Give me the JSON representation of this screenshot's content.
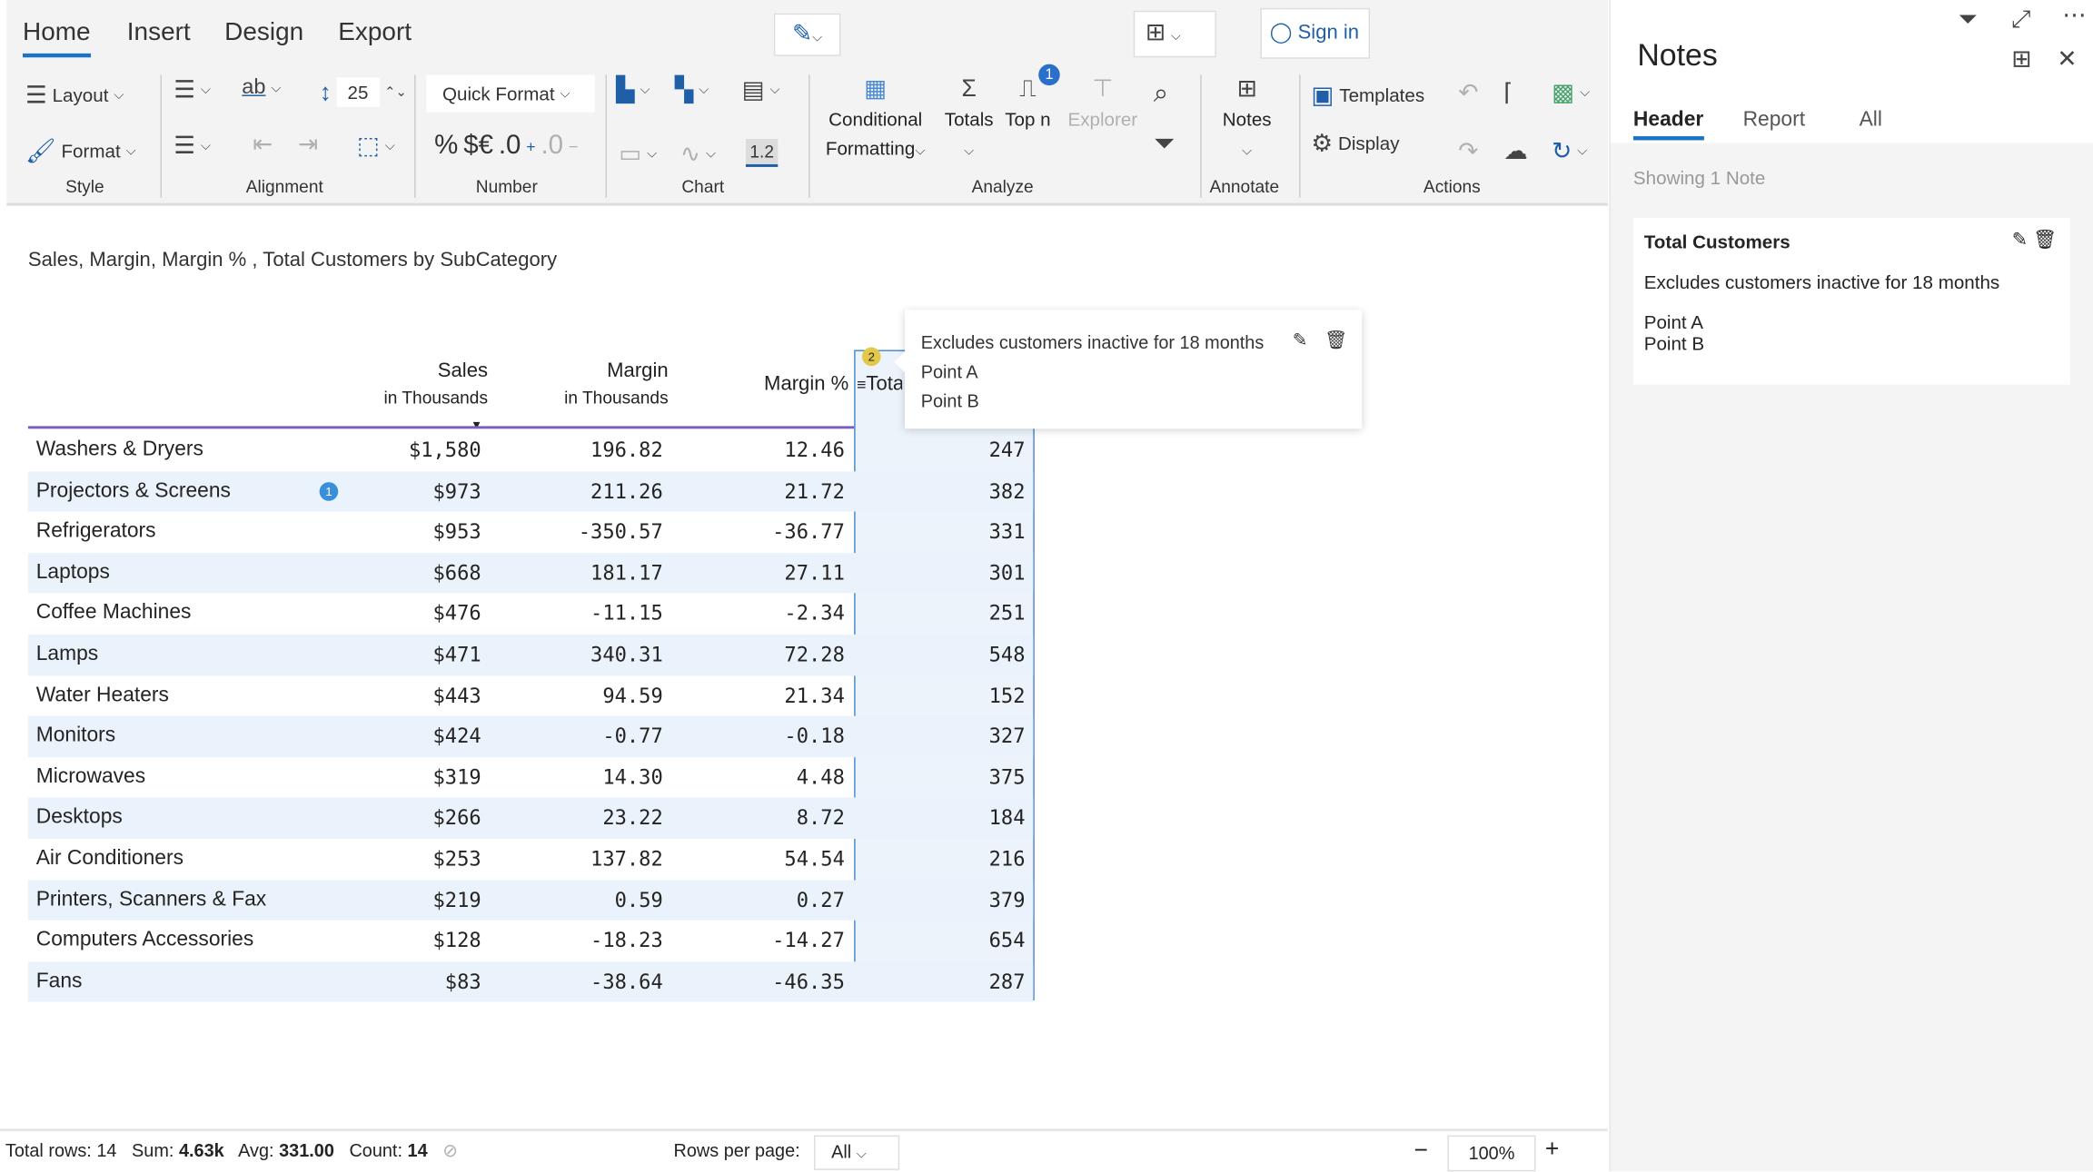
{
  "ribbon": {
    "tabs": [
      "Home",
      "Insert",
      "Design",
      "Export"
    ],
    "active_tab": "Home",
    "sign_in": "Sign in",
    "layout": "Layout",
    "format": "Format",
    "row_height": "25",
    "quick_format": "Quick Format",
    "number_symbols": {
      "percent": "%",
      "currency": "$€",
      "inc_decimal": ".0",
      "dec_decimal": ".0"
    },
    "chart_value": "1.2",
    "conditional": "Conditional",
    "formatting": "Formatting",
    "totals": "Totals",
    "topn": "Top n",
    "topn_badge": "1",
    "explorer": "Explorer",
    "notes": "Notes",
    "templates": "Templates",
    "display": "Display",
    "groups": [
      "Style",
      "Alignment",
      "Number",
      "Chart",
      "Analyze",
      "Annotate",
      "Actions"
    ]
  },
  "report": {
    "title": "Sales, Margin, Margin % , Total Customers by SubCategory",
    "columns": [
      {
        "label": "Sales",
        "sub": "in Thousands",
        "sorted": "desc"
      },
      {
        "label": "Margin",
        "sub": "in Thousands"
      },
      {
        "label": "Margin %",
        "sub": ""
      },
      {
        "label": "Total Customers",
        "sub": "",
        "note_badge": "2",
        "visible_label": "Tota"
      }
    ],
    "rows": [
      {
        "name": "Washers & Dryers",
        "sales": "$1,580",
        "margin": "196.82",
        "pct": "12.46",
        "cust": "247"
      },
      {
        "name": "Projectors & Screens",
        "sales": "$973",
        "margin": "211.26",
        "pct": "21.72",
        "cust": "382",
        "badge": "1"
      },
      {
        "name": "Refrigerators",
        "sales": "$953",
        "margin": "-350.57",
        "pct": "-36.77",
        "cust": "331"
      },
      {
        "name": "Laptops",
        "sales": "$668",
        "margin": "181.17",
        "pct": "27.11",
        "cust": "301"
      },
      {
        "name": "Coffee Machines",
        "sales": "$476",
        "margin": "-11.15",
        "pct": "-2.34",
        "cust": "251"
      },
      {
        "name": "Lamps",
        "sales": "$471",
        "margin": "340.31",
        "pct": "72.28",
        "cust": "548"
      },
      {
        "name": "Water Heaters",
        "sales": "$443",
        "margin": "94.59",
        "pct": "21.34",
        "cust": "152"
      },
      {
        "name": "Monitors",
        "sales": "$424",
        "margin": "-0.77",
        "pct": "-0.18",
        "cust": "327"
      },
      {
        "name": "Microwaves",
        "sales": "$319",
        "margin": "14.30",
        "pct": "4.48",
        "cust": "375"
      },
      {
        "name": "Desktops",
        "sales": "$266",
        "margin": "23.22",
        "pct": "8.72",
        "cust": "184"
      },
      {
        "name": "Air Conditioners",
        "sales": "$253",
        "margin": "137.82",
        "pct": "54.54",
        "cust": "216"
      },
      {
        "name": "Printers, Scanners & Fax",
        "sales": "$219",
        "margin": "0.59",
        "pct": "0.27",
        "cust": "379"
      },
      {
        "name": "Computers Accessories",
        "sales": "$128",
        "margin": "-18.23",
        "pct": "-14.27",
        "cust": "654"
      },
      {
        "name": "Fans",
        "sales": "$83",
        "margin": "-38.64",
        "pct": "-46.35",
        "cust": "287"
      }
    ],
    "tooltip": {
      "text": "Excludes customers inactive for 18 months",
      "points": [
        "Point A",
        "Point B"
      ]
    }
  },
  "status": {
    "total_rows_label": "Total rows:",
    "total_rows": "14",
    "sum_label": "Sum:",
    "sum": "4.63k",
    "avg_label": "Avg:",
    "avg": "331.00",
    "count_label": "Count:",
    "count": "14",
    "rows_per_page_label": "Rows per page:",
    "rows_per_page": "All",
    "zoom": "100%"
  },
  "notes_panel": {
    "title": "Notes",
    "tabs": [
      "Header",
      "Report",
      "All"
    ],
    "active_tab": "Header",
    "showing": "Showing 1 Note",
    "card": {
      "title": "Total Customers",
      "text": "Excludes customers inactive for 18 months",
      "points": [
        "Point A",
        "Point B"
      ]
    }
  },
  "colors": {
    "accent": "#1a73c8",
    "header_line": "#7b5fbf",
    "row_alt": "#eaf3fb",
    "note_badge": "#e3c84a",
    "info_badge": "#3a8fd8"
  }
}
